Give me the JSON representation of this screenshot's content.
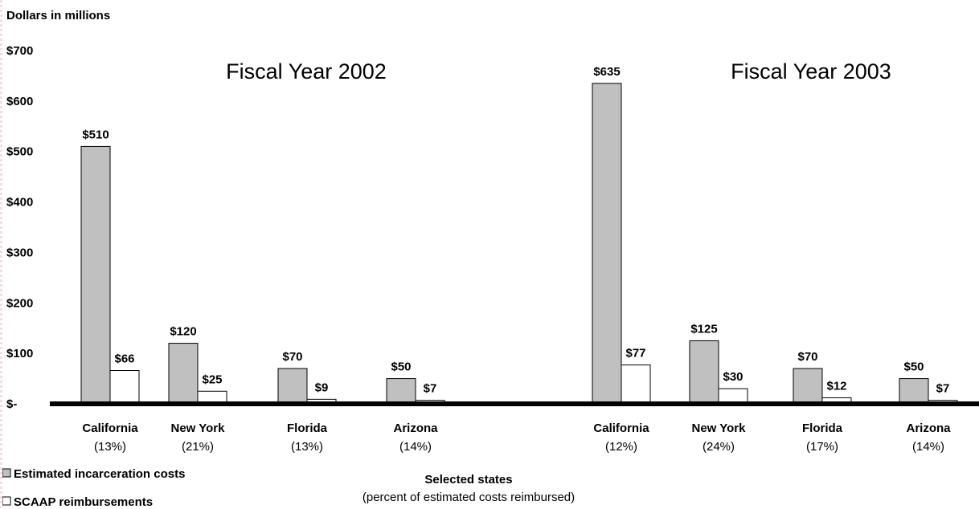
{
  "chart_data": {
    "type": "bar",
    "ylabel": "Dollars in millions",
    "xlabel": "Selected states",
    "xlabel_sub": "(percent of estimated costs reimbursed)",
    "ylim": [
      0,
      700
    ],
    "yticks": [
      {
        "value": 0,
        "label": "$-"
      },
      {
        "value": 100,
        "label": "$100"
      },
      {
        "value": 200,
        "label": "$200"
      },
      {
        "value": 300,
        "label": "$300"
      },
      {
        "value": 400,
        "label": "$400"
      },
      {
        "value": 500,
        "label": "$500"
      },
      {
        "value": 600,
        "label": "$600"
      },
      {
        "value": 700,
        "label": "$700"
      }
    ],
    "series": [
      {
        "name": "Estimated incarceration costs",
        "color": "#c0c0c0"
      },
      {
        "name": "SCAAP reimbursements",
        "color": "#ffffff"
      }
    ],
    "legend_position": "bottom-left",
    "grid": false,
    "groups": [
      {
        "title": "Fiscal Year 2002",
        "categories": [
          {
            "name": "California",
            "pct": "(13%)",
            "values": [
              510,
              66
            ],
            "labels": [
              "$510",
              "$66"
            ]
          },
          {
            "name": "New York",
            "pct": "(21%)",
            "values": [
              120,
              25
            ],
            "labels": [
              "$120",
              "$25"
            ]
          },
          {
            "name": "Florida",
            "pct": "(13%)",
            "values": [
              70,
              9
            ],
            "labels": [
              "$70",
              "$9"
            ]
          },
          {
            "name": "Arizona",
            "pct": "(14%)",
            "values": [
              50,
              7
            ],
            "labels": [
              "$50",
              "$7"
            ]
          }
        ]
      },
      {
        "title": "Fiscal Year 2003",
        "categories": [
          {
            "name": "California",
            "pct": "(12%)",
            "values": [
              635,
              77
            ],
            "labels": [
              "$635",
              "$77"
            ]
          },
          {
            "name": "New York",
            "pct": "(24%)",
            "values": [
              125,
              30
            ],
            "labels": [
              "$125",
              "$30"
            ]
          },
          {
            "name": "Florida",
            "pct": "(17%)",
            "values": [
              70,
              12
            ],
            "labels": [
              "$70",
              "$12"
            ]
          },
          {
            "name": "Arizona",
            "pct": "(14%)",
            "values": [
              50,
              7
            ],
            "labels": [
              "$50",
              "$7"
            ]
          }
        ]
      }
    ]
  }
}
